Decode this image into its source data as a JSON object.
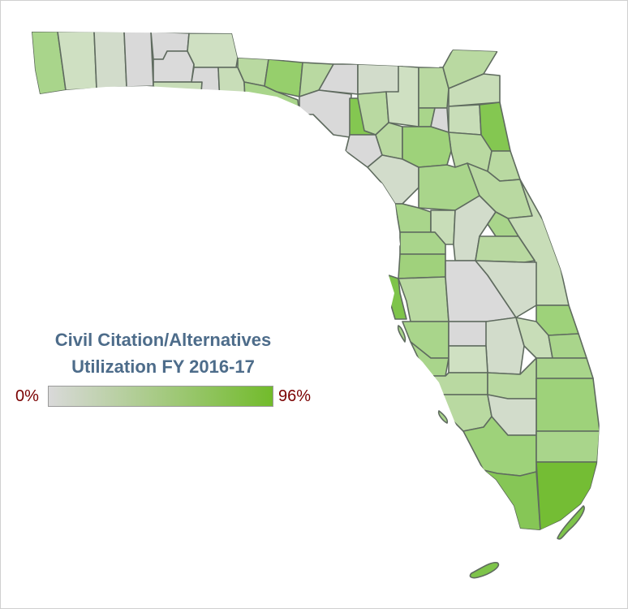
{
  "title_line1": "Civil Citation/Alternatives",
  "title_line2": "Utilization FY 2016-17",
  "legend": {
    "min_label": "0%",
    "max_label": "96%",
    "min_color": "#d9d9d9",
    "max_color": "#72bb2b"
  },
  "colors": {
    "county_border": "#5f6b5f",
    "title": "#4d6c8a",
    "legend_text": "#7a0000"
  }
}
